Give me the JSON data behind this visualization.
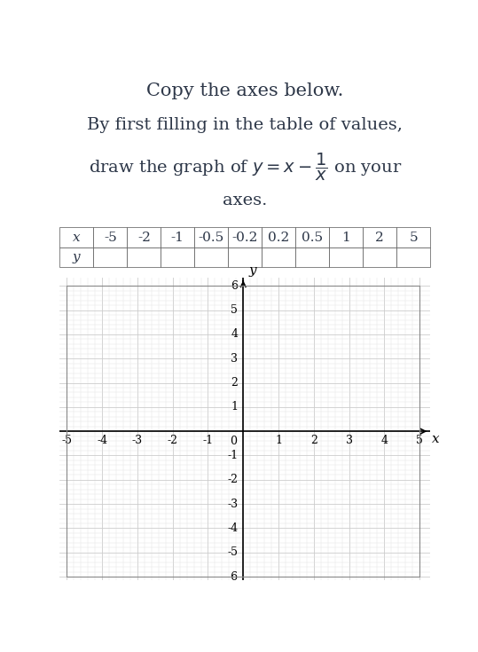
{
  "title_line1": "Copy the axes below.",
  "title_line2": "By first filling in the table of values,",
  "title_line3": "draw the graph of $y = x - \\frac{1}{x}$ on your",
  "title_line4": "axes.",
  "table_x": [
    "x",
    "-5",
    "-2",
    "-1",
    "-0.5",
    "-0.2",
    "0.2",
    "0.5",
    "1",
    "2",
    "5"
  ],
  "table_y": [
    "y",
    "",
    "",
    "",
    "",
    "",
    "",
    "",
    "",
    "",
    ""
  ],
  "xlim": [
    -5,
    5
  ],
  "ylim": [
    -6,
    6
  ],
  "xticks": [
    -5,
    -4,
    -3,
    -2,
    -1,
    0,
    1,
    2,
    3,
    4,
    5
  ],
  "yticks": [
    -6,
    -5,
    -4,
    -3,
    -2,
    -1,
    0,
    1,
    2,
    3,
    4,
    5,
    6
  ],
  "xlabel": "x",
  "ylabel": "y",
  "grid_color": "#cccccc",
  "minor_grid_color": "#e0e0e0",
  "axis_color": "#000000",
  "background_color": "#ffffff",
  "text_color": "#2d3748",
  "font_size_title": 16,
  "font_size_text": 14
}
